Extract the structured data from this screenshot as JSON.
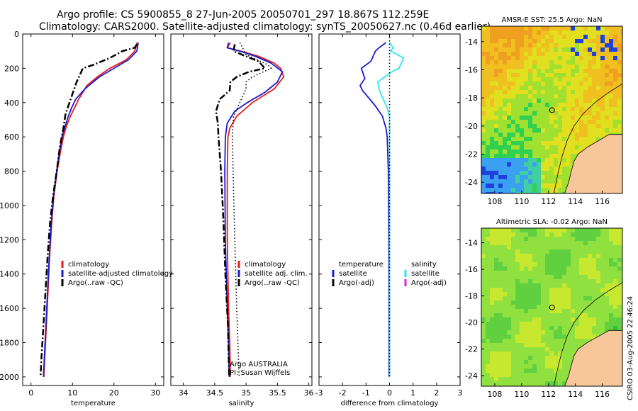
{
  "figure": {
    "title_line1": "Argo profile: CS 5900855_8 27-Jun-2005 20050701_297 18.867S 112.259E",
    "title_line2": "Climatology: CARS2000. Satellite-adjusted climatology: synTS_20050627.nc (0.46d earlier)",
    "credit_line1": "Argo AUSTRALIA",
    "credit_line2": "PI: Susan Wijffels",
    "timestamp": "CSIRO 03-Aug-2005 22:46:24"
  },
  "colors": {
    "climatology": "#e81919",
    "satellite": "#1a1ad0",
    "argo": "#000000",
    "salinity_sat": "#2ee6f0",
    "salinity_argo": "#e020e0",
    "land": "#f7c79a"
  },
  "chart_data": [
    {
      "type": "line",
      "name": "temperature-profile",
      "xlabel": "temperature",
      "ylabel": "",
      "xlim": [
        -2,
        32
      ],
      "ylim": [
        2050,
        0
      ],
      "y_reversed": true,
      "xticks": [
        0,
        10,
        20,
        30
      ],
      "yticks": [
        0,
        200,
        400,
        600,
        800,
        1000,
        1200,
        1400,
        1600,
        1800,
        2000
      ],
      "legend": {
        "position": "lower-right",
        "entries": [
          "climatology",
          "satellite-adjusted climatology",
          "Argo(..raw -QC)"
        ]
      },
      "series": [
        {
          "name": "climatology",
          "style": "solid",
          "color_key": "climatology",
          "points": [
            [
              25.5,
              50
            ],
            [
              25.5,
              60
            ],
            [
              25,
              100
            ],
            [
              23,
              150
            ],
            [
              19,
              200
            ],
            [
              16,
              250
            ],
            [
              13.5,
              300
            ],
            [
              11.5,
              380
            ],
            [
              10.5,
              430
            ],
            [
              9.5,
              480
            ],
            [
              8.5,
              540
            ],
            [
              7.8,
              600
            ],
            [
              7,
              700
            ],
            [
              6.3,
              800
            ],
            [
              5.5,
              950
            ],
            [
              5,
              1100
            ],
            [
              4.5,
              1300
            ],
            [
              4.1,
              1500
            ],
            [
              3.7,
              1700
            ],
            [
              3.3,
              1900
            ],
            [
              3.1,
              2000
            ]
          ]
        },
        {
          "name": "satellite-adjusted climatology",
          "style": "solid",
          "color_key": "satellite",
          "points": [
            [
              25.8,
              50
            ],
            [
              25.8,
              60
            ],
            [
              25.5,
              100
            ],
            [
              23.5,
              150
            ],
            [
              20,
              200
            ],
            [
              16.5,
              250
            ],
            [
              13,
              320
            ],
            [
              10.8,
              380
            ],
            [
              9.8,
              430
            ],
            [
              9,
              480
            ],
            [
              8.2,
              540
            ],
            [
              7.5,
              600
            ],
            [
              6.8,
              700
            ],
            [
              6.2,
              800
            ],
            [
              5.4,
              950
            ],
            [
              4.9,
              1100
            ],
            [
              4.4,
              1300
            ],
            [
              4,
              1500
            ],
            [
              3.6,
              1700
            ],
            [
              3.2,
              1900
            ],
            [
              3,
              2000
            ]
          ]
        },
        {
          "name": "Argo(..raw -QC)",
          "style": "dashdot",
          "color_key": "argo",
          "points": [
            [
              25.5,
              60
            ],
            [
              25,
              80
            ],
            [
              22,
              100
            ],
            [
              19,
              140
            ],
            [
              15,
              180
            ],
            [
              12.5,
              200
            ],
            [
              11,
              280
            ],
            [
              10,
              350
            ],
            [
              9,
              420
            ],
            [
              8.3,
              470
            ],
            [
              7.8,
              550
            ],
            [
              7,
              650
            ],
            [
              6.2,
              800
            ],
            [
              5.3,
              950
            ],
            [
              4.6,
              1100
            ],
            [
              4,
              1300
            ],
            [
              3.5,
              1500
            ],
            [
              3,
              1700
            ],
            [
              2.5,
              1900
            ],
            [
              2.3,
              2000
            ]
          ]
        }
      ]
    },
    {
      "type": "line",
      "name": "salinity-profile",
      "xlabel": "salinity",
      "ylabel": "",
      "xlim": [
        33.8,
        36.05
      ],
      "ylim": [
        2050,
        0
      ],
      "y_reversed": true,
      "xticks": [
        34,
        34.5,
        35,
        35.5,
        36
      ],
      "xtick_labels": [
        "34",
        "34.5",
        "35",
        "35.5",
        "36"
      ],
      "legend": {
        "position": "lower-right",
        "entries": [
          "climatology",
          "satellite adj. clim.",
          "Argo(..raw -QC)"
        ]
      },
      "series": [
        {
          "name": "climatology",
          "style": "solid",
          "color_key": "climatology",
          "points": [
            [
              34.75,
              50
            ],
            [
              34.7,
              80
            ],
            [
              34.92,
              100
            ],
            [
              35.2,
              130
            ],
            [
              35.45,
              170
            ],
            [
              35.55,
              200
            ],
            [
              35.6,
              250
            ],
            [
              35.45,
              320
            ],
            [
              35.1,
              400
            ],
            [
              34.85,
              480
            ],
            [
              34.74,
              550
            ],
            [
              34.71,
              600
            ],
            [
              34.7,
              800
            ],
            [
              34.7,
              1200
            ],
            [
              34.72,
              1600
            ],
            [
              34.74,
              1800
            ],
            [
              34.75,
              2000
            ]
          ]
        },
        {
          "name": "satellite adj. clim.",
          "style": "solid",
          "color_key": "satellite",
          "points": [
            [
              34.72,
              50
            ],
            [
              34.7,
              80
            ],
            [
              34.9,
              100
            ],
            [
              35.15,
              130
            ],
            [
              35.4,
              170
            ],
            [
              35.58,
              220
            ],
            [
              35.5,
              280
            ],
            [
              35.3,
              340
            ],
            [
              35.02,
              400
            ],
            [
              34.82,
              450
            ],
            [
              34.7,
              520
            ],
            [
              34.67,
              600
            ],
            [
              34.66,
              800
            ],
            [
              34.67,
              1200
            ],
            [
              34.7,
              1600
            ],
            [
              34.72,
              1800
            ],
            [
              34.73,
              2000
            ]
          ]
        },
        {
          "name": "Argo(..raw -QC)",
          "style": "dashdot",
          "color_key": "argo",
          "points": [
            [
              34.82,
              60
            ],
            [
              34.8,
              100
            ],
            [
              35.2,
              160
            ],
            [
              35.3,
              200
            ],
            [
              35.05,
              220
            ],
            [
              34.85,
              250
            ],
            [
              34.75,
              280
            ],
            [
              34.74,
              330
            ],
            [
              34.58,
              380
            ],
            [
              34.52,
              450
            ],
            [
              34.55,
              520
            ],
            [
              34.56,
              600
            ],
            [
              34.6,
              800
            ],
            [
              34.64,
              1100
            ],
            [
              34.67,
              1400
            ],
            [
              34.71,
              1700
            ],
            [
              34.73,
              2000
            ]
          ]
        },
        {
          "name": "Argo(..raw -QC) dotted",
          "style": "dotted",
          "color_key": "argo",
          "points": [
            [
              34.9,
              50
            ],
            [
              35,
              120
            ],
            [
              35.35,
              180
            ],
            [
              35.4,
              200
            ],
            [
              35.1,
              250
            ],
            [
              35,
              280
            ],
            [
              35,
              320
            ],
            [
              34.9,
              400
            ],
            [
              34.8,
              480
            ],
            [
              34.78,
              600
            ],
            [
              34.8,
              900
            ],
            [
              34.82,
              1200
            ],
            [
              34.85,
              1600
            ],
            [
              34.87,
              1800
            ],
            [
              34.89,
              2000
            ]
          ]
        }
      ]
    },
    {
      "type": "line",
      "name": "difference-profile",
      "xlabel": "difference from climatology",
      "ylabel": "",
      "xlim": [
        -3,
        3
      ],
      "ylim": [
        2050,
        0
      ],
      "y_reversed": true,
      "xticks": [
        -3,
        -2,
        -1,
        0,
        1,
        2,
        3
      ],
      "xtick_labels": [
        "-3",
        "-2",
        "-1",
        "0",
        "1",
        "2",
        "3"
      ],
      "legend": {
        "position": "lower-left",
        "entries": [
          "temperature",
          "satellite",
          "Argo(-adj)",
          "salinity",
          "satellite",
          "Argo(-adj)"
        ]
      },
      "series": [
        {
          "name": "temperature satellite",
          "style": "solid",
          "color_key": "satellite",
          "points": [
            [
              -0.15,
              50
            ],
            [
              -0.45,
              80
            ],
            [
              -0.6,
              100
            ],
            [
              -0.7,
              130
            ],
            [
              -0.8,
              160
            ],
            [
              -1.2,
              200
            ],
            [
              -1.05,
              260
            ],
            [
              -1.25,
              300
            ],
            [
              -1.15,
              330
            ],
            [
              -0.9,
              370
            ],
            [
              -0.6,
              420
            ],
            [
              -0.3,
              480
            ],
            [
              -0.15,
              550
            ],
            [
              -0.1,
              600
            ],
            [
              -0.05,
              800
            ],
            [
              -0.03,
              1200
            ],
            [
              -0.02,
              1600
            ],
            [
              -0.02,
              2000
            ]
          ]
        },
        {
          "name": "salinity satellite",
          "style": "solid",
          "color_key": "salinity_sat",
          "points": [
            [
              0,
              50
            ],
            [
              0.15,
              80
            ],
            [
              0.05,
              100
            ],
            [
              0.6,
              140
            ],
            [
              0.4,
              200
            ],
            [
              0.1,
              220
            ],
            [
              -0.2,
              250
            ],
            [
              -0.5,
              280
            ],
            [
              -0.45,
              320
            ],
            [
              -0.3,
              370
            ],
            [
              -0.1,
              430
            ],
            [
              0,
              480
            ],
            [
              0,
              600
            ],
            [
              0,
              800
            ],
            [
              0,
              1200
            ],
            [
              0,
              1600
            ],
            [
              0,
              2000
            ]
          ]
        },
        {
          "name": "zero line",
          "style": "dotted",
          "color_key": "argo",
          "points": [
            [
              0,
              0
            ],
            [
              0,
              2000
            ]
          ]
        }
      ]
    },
    {
      "type": "heatmap",
      "name": "sst-map",
      "title": "AMSR-E SST: 25.5 Argo: NaN",
      "xlim": [
        107,
        117.5
      ],
      "ylim": [
        -24.8,
        -12.9
      ],
      "xticks": [
        108,
        110,
        112,
        114,
        116
      ],
      "yticks": [
        -14,
        -16,
        -18,
        -20,
        -22,
        -24
      ],
      "marker": {
        "lon": 112.26,
        "lat": -18.87
      }
    },
    {
      "type": "heatmap",
      "name": "sla-map",
      "title": "Altimetric SLA: -0.02 Argo: NaN",
      "xlim": [
        107,
        117.5
      ],
      "ylim": [
        -24.8,
        -12.9
      ],
      "xticks": [
        108,
        110,
        112,
        114,
        116
      ],
      "yticks": [
        -14,
        -16,
        -18,
        -20,
        -22,
        -24
      ],
      "marker": {
        "lon": 112.26,
        "lat": -18.87
      }
    }
  ]
}
